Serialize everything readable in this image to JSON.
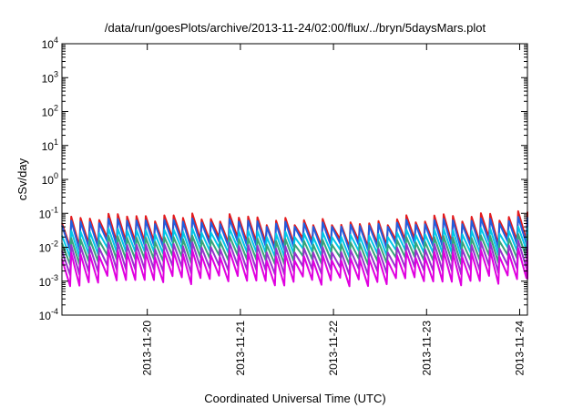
{
  "chart_data": {
    "type": "line",
    "title": "/data/run/goesPlots/archive/2013-11-24/02:00/flux/../bryn/5daysMars.plot",
    "xlabel": "Coordinated Universal Time (UTC)",
    "ylabel": "cSv/day",
    "y_scale": "log",
    "ylim_exp": [
      -4,
      4
    ],
    "y_ticks": [
      {
        "base": "10",
        "exp": "4"
      },
      {
        "base": "10",
        "exp": "3"
      },
      {
        "base": "10",
        "exp": "2"
      },
      {
        "base": "10",
        "exp": "1"
      },
      {
        "base": "10",
        "exp": "0"
      },
      {
        "base": "10",
        "exp": "-1"
      },
      {
        "base": "10",
        "exp": "-2"
      },
      {
        "base": "10",
        "exp": "-3"
      },
      {
        "base": "10",
        "exp": "-4"
      }
    ],
    "xlim": [
      "2013-11-19 02:00",
      "2013-11-24 02:00"
    ],
    "x_ticks": [
      "2013-11-20",
      "2013-11-21",
      "2013-11-22",
      "2013-11-23",
      "2013-11-24"
    ],
    "grid": false,
    "legend": "none",
    "oscillation_period_hours": 2.4,
    "series": [
      {
        "color": "#e41a1c",
        "peak_range": [
          0.045,
          0.15
        ],
        "trough_range": [
          0.01,
          0.02
        ]
      },
      {
        "color": "#1f5fe0",
        "peak_range": [
          0.04,
          0.095
        ],
        "trough_range": [
          0.008,
          0.015
        ]
      },
      {
        "color": "#00c8e8",
        "peak_range": [
          0.02,
          0.05
        ],
        "trough_range": [
          0.005,
          0.01
        ]
      },
      {
        "color": "#3aa37a",
        "peak_range": [
          0.012,
          0.03
        ],
        "trough_range": [
          0.003,
          0.006
        ]
      },
      {
        "color": "#9932cc",
        "peak_range": [
          0.007,
          0.02
        ],
        "trough_range": [
          0.0015,
          0.003
        ]
      },
      {
        "color": "#e000e0",
        "peak_range": [
          0.004,
          0.012
        ],
        "trough_range": [
          0.0007,
          0.0015
        ]
      }
    ]
  }
}
